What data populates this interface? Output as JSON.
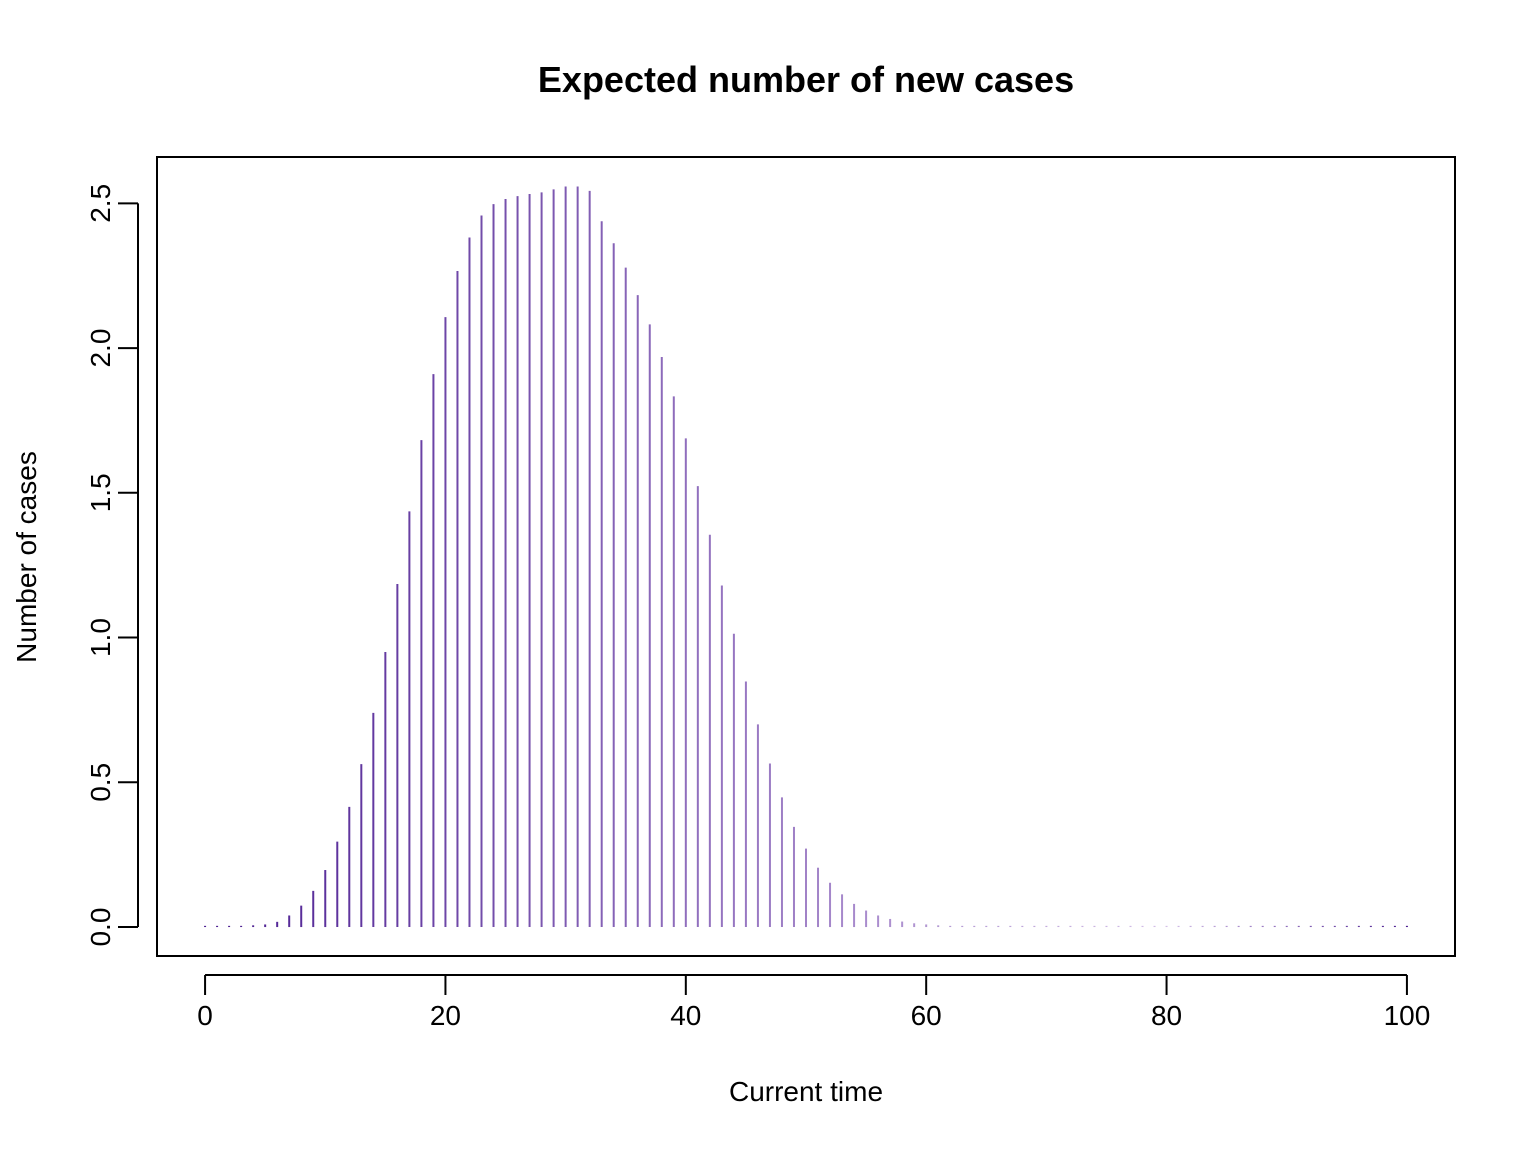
{
  "chart_data": {
    "type": "bar",
    "title": "Expected number of new cases",
    "xlabel": "Current time",
    "ylabel": "Number of cases",
    "xlim": [
      -4,
      104
    ],
    "ylim": [
      -0.1,
      2.66
    ],
    "x_ticks": [
      0,
      20,
      40,
      60,
      80,
      100
    ],
    "x_tick_labels": [
      "0",
      "20",
      "40",
      "60",
      "80",
      "100"
    ],
    "y_ticks": [
      0,
      0.5,
      1.0,
      1.5,
      2.0,
      2.5
    ],
    "y_tick_labels": [
      "0.0",
      "0.5",
      "1.0",
      "1.5",
      "2.0",
      "2.5"
    ],
    "grid": false,
    "legend": "none",
    "colors": {
      "color_start": "#4b1d91",
      "color_mid": "#d4bfe8",
      "color_end": "#4b1d91",
      "axis": "#000000"
    },
    "x": [
      0,
      1,
      2,
      3,
      4,
      5,
      6,
      7,
      8,
      9,
      10,
      11,
      12,
      13,
      14,
      15,
      16,
      17,
      18,
      19,
      20,
      21,
      22,
      23,
      24,
      25,
      26,
      27,
      28,
      29,
      30,
      31,
      32,
      33,
      34,
      35,
      36,
      37,
      38,
      39,
      40,
      41,
      42,
      43,
      44,
      45,
      46,
      47,
      48,
      49,
      50,
      51,
      52,
      53,
      54,
      55,
      56,
      57,
      58,
      59,
      60,
      61,
      62,
      63,
      64,
      65,
      66,
      67,
      68,
      69,
      70,
      71,
      72,
      73,
      74,
      75,
      76,
      77,
      78,
      79,
      80,
      81,
      82,
      83,
      84,
      85,
      86,
      87,
      88,
      89,
      90,
      91,
      92,
      93,
      94,
      95,
      96,
      97,
      98,
      99,
      100
    ],
    "values": [
      0.001,
      0.002,
      0.003,
      0.004,
      0.006,
      0.009,
      0.018,
      0.04,
      0.074,
      0.125,
      0.197,
      0.295,
      0.415,
      0.563,
      0.74,
      0.95,
      1.185,
      1.436,
      1.682,
      1.91,
      2.107,
      2.266,
      2.382,
      2.458,
      2.497,
      2.515,
      2.525,
      2.532,
      2.538,
      2.548,
      2.558,
      2.558,
      2.543,
      2.438,
      2.362,
      2.278,
      2.183,
      2.082,
      1.969,
      1.833,
      1.688,
      1.523,
      1.355,
      1.18,
      1.013,
      0.848,
      0.7,
      0.565,
      0.448,
      0.346,
      0.271,
      0.205,
      0.153,
      0.113,
      0.08,
      0.057,
      0.04,
      0.028,
      0.019,
      0.013,
      0.009,
      0.006,
      0.004,
      0.003,
      0.002,
      0.002,
      0.001,
      0.001,
      0.001,
      0.001,
      0.001,
      0.001,
      0.001,
      0.001,
      0.001,
      0.001,
      0.001,
      0.001,
      0.001,
      0.001,
      0.001,
      0.001,
      0.001,
      0.001,
      0.001,
      0.001,
      0.001,
      0.001,
      0.001,
      0.001,
      0.001,
      0.001,
      0.001,
      0.001,
      0.001,
      0.001,
      0.001,
      0.001,
      0.001,
      0.001,
      0.001
    ]
  }
}
